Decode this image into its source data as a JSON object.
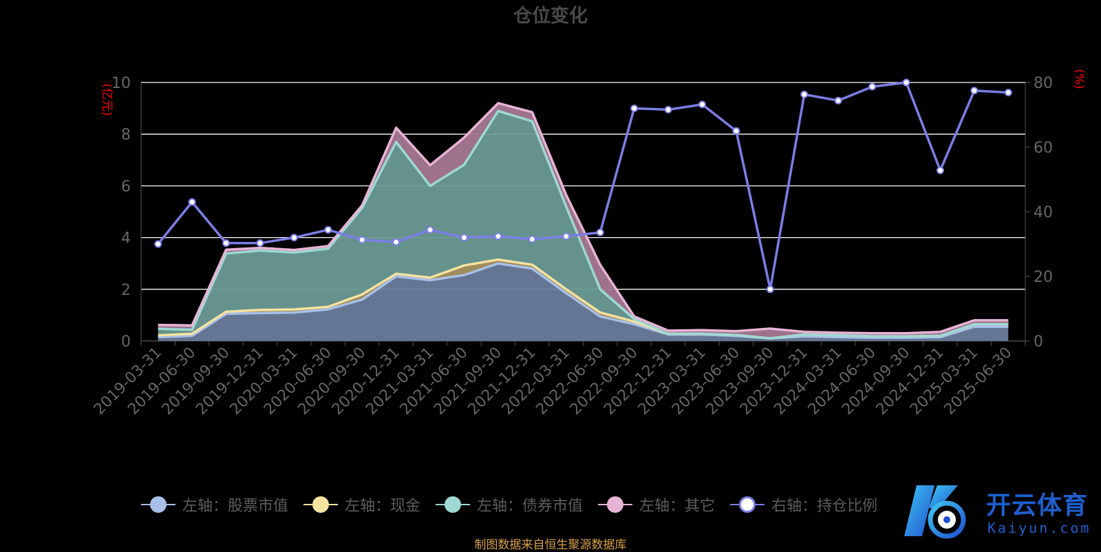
{
  "chart_data": {
    "type": "area",
    "title": "仓位变化",
    "left_axis_unit": "(亿元)",
    "right_axis_unit": "(%)",
    "categories": [
      "2019-03-31",
      "2019-06-30",
      "2019-09-30",
      "2019-12-31",
      "2020-03-31",
      "2020-06-30",
      "2020-09-30",
      "2020-12-31",
      "2021-03-31",
      "2021-06-30",
      "2021-09-30",
      "2021-12-31",
      "2022-03-31",
      "2022-06-30",
      "2022-09-30",
      "2022-12-31",
      "2023-03-31",
      "2023-06-30",
      "2023-09-30",
      "2023-12-31",
      "2024-03-31",
      "2024-06-30",
      "2024-09-30",
      "2024-12-31",
      "2025-03-31",
      "2025-06-30"
    ],
    "left_ylim": [
      0,
      10
    ],
    "left_ticks": [
      0,
      2,
      4,
      6,
      8,
      10
    ],
    "right_ylim": [
      0,
      80
    ],
    "right_ticks": [
      0,
      20,
      40,
      60,
      80
    ],
    "stacked": true,
    "series": [
      {
        "name": "左轴：股票市值",
        "axis": "left",
        "color": "#a8c0e8",
        "values": [
          0.15,
          0.2,
          1.05,
          1.08,
          1.1,
          1.22,
          1.6,
          2.5,
          2.35,
          2.55,
          3.0,
          2.8,
          1.85,
          0.95,
          0.65,
          0.25,
          0.25,
          0.2,
          0.1,
          0.18,
          0.15,
          0.13,
          0.13,
          0.15,
          0.55,
          0.55
        ]
      },
      {
        "name": "左轴：现金",
        "axis": "left",
        "color": "#f5e3a1",
        "values": [
          0.07,
          0.08,
          0.08,
          0.12,
          0.12,
          0.1,
          0.2,
          0.1,
          0.1,
          0.37,
          0.15,
          0.15,
          0.15,
          0.15,
          0.1,
          0.03,
          0.03,
          0.03,
          0.0,
          0.07,
          0.07,
          0.05,
          0.05,
          0.05,
          0.1,
          0.1
        ]
      },
      {
        "name": "左轴：债券市值",
        "axis": "left",
        "color": "#9ed9d3",
        "values": [
          0.25,
          0.15,
          2.25,
          2.3,
          2.2,
          2.25,
          3.35,
          5.1,
          3.55,
          3.9,
          5.75,
          5.55,
          3.2,
          0.9,
          0.1,
          0.0,
          0.0,
          0.0,
          0.0,
          0.0,
          0.0,
          0.0,
          0.0,
          0.0,
          0.0,
          0.0
        ]
      },
      {
        "name": "左轴：其它",
        "axis": "left",
        "color": "#e8b4d6",
        "values": [
          0.15,
          0.17,
          0.15,
          0.1,
          0.1,
          0.1,
          0.1,
          0.55,
          0.8,
          1.05,
          0.3,
          0.35,
          0.45,
          0.95,
          0.1,
          0.12,
          0.14,
          0.15,
          0.38,
          0.1,
          0.1,
          0.12,
          0.12,
          0.15,
          0.15,
          0.15
        ]
      },
      {
        "name": "右轴：持仓比例",
        "axis": "right",
        "color": "#7b7fe6",
        "values": [
          30,
          43,
          30.3,
          30.3,
          32,
          34.4,
          31.3,
          30.6,
          34.4,
          32,
          32.4,
          31.5,
          32.4,
          33.6,
          72,
          71.6,
          73.2,
          65,
          16,
          76.3,
          74.4,
          78.7,
          80,
          52.8,
          77.5,
          76.9
        ]
      }
    ]
  },
  "footer": {
    "source": "制图数据来自恒生聚源数据库"
  },
  "watermark": {
    "title": "开云体育",
    "subtitle": "Kaiyun.com"
  },
  "colors": {
    "background": "#000000",
    "grid": "#ffffff",
    "axis_text": "#666666",
    "unit_text": "#ff0000"
  }
}
